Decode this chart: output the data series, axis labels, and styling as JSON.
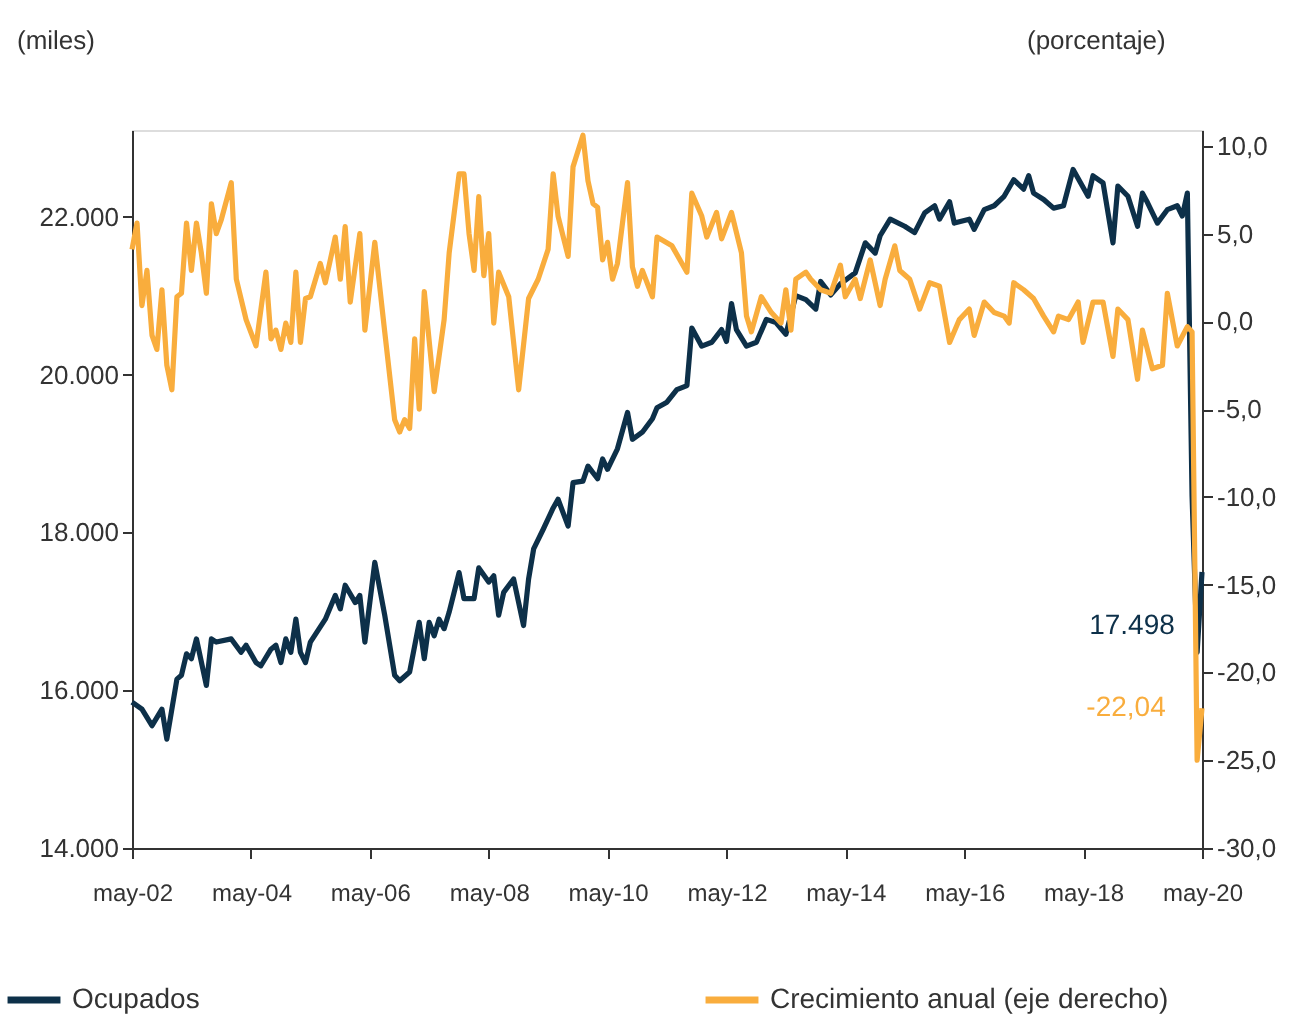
{
  "chart_data": {
    "type": "line",
    "ylabel": "(miles)",
    "y2label": "(porcentaje)",
    "legend": "bottom",
    "xlim": [
      "2002-05",
      "2020-05"
    ],
    "xticks": [
      {
        "value": "2002-05",
        "label": "may-02"
      },
      {
        "value": "2004-05",
        "label": "may-04"
      },
      {
        "value": "2006-05",
        "label": "may-06"
      },
      {
        "value": "2008-05",
        "label": "may-08"
      },
      {
        "value": "2010-05",
        "label": "may-10"
      },
      {
        "value": "2012-05",
        "label": "may-12"
      },
      {
        "value": "2014-05",
        "label": "may-14"
      },
      {
        "value": "2016-05",
        "label": "may-16"
      },
      {
        "value": "2018-05",
        "label": "may-18"
      },
      {
        "value": "2020-05",
        "label": "may-20"
      }
    ],
    "ylim": [
      14000,
      23100
    ],
    "yticks": [
      {
        "value": 14000,
        "label": "14.000"
      },
      {
        "value": 16000,
        "label": "16.000"
      },
      {
        "value": 18000,
        "label": "18.000"
      },
      {
        "value": 20000,
        "label": "20.000"
      },
      {
        "value": 22000,
        "label": "22.000"
      }
    ],
    "y2lim": [
      -30,
      10.9
    ],
    "y2ticks": [
      {
        "value": -30,
        "label": "-30,0"
      },
      {
        "value": -25,
        "label": "-25,0"
      },
      {
        "value": -20,
        "label": "-20,0"
      },
      {
        "value": -15,
        "label": "-15,0"
      },
      {
        "value": -10,
        "label": "-10,0"
      },
      {
        "value": -5,
        "label": "-5,0"
      },
      {
        "value": 0,
        "label": "0,0"
      },
      {
        "value": 5,
        "label": "5,0"
      },
      {
        "value": 10,
        "label": "10,0"
      }
    ],
    "annotations": [
      "17.498",
      "-22,04"
    ],
    "series": [
      {
        "name": "Ocupados",
        "color": "#0d3049",
        "x": [
          "2002-05",
          "2002-07",
          "2002-09",
          "2002-11",
          "2002-12",
          "2003-02",
          "2003-03",
          "2003-04",
          "2003-05",
          "2003-06",
          "2003-08",
          "2003-09",
          "2003-10",
          "2004-01",
          "2004-03",
          "2004-04",
          "2004-06",
          "2004-07",
          "2004-09",
          "2004-10",
          "2004-11",
          "2004-12",
          "2005-01",
          "2005-02",
          "2005-03",
          "2005-04",
          "2005-05",
          "2005-08",
          "2005-10",
          "2005-11",
          "2005-12",
          "2006-02",
          "2006-03",
          "2006-04",
          "2006-06",
          "2006-08",
          "2006-10",
          "2006-11",
          "2007-01",
          "2007-03",
          "2007-04",
          "2007-05",
          "2007-06",
          "2007-07",
          "2007-08",
          "2007-09",
          "2007-11",
          "2007-12",
          "2008-02",
          "2008-03",
          "2008-05",
          "2008-06",
          "2008-07",
          "2008-08",
          "2008-10",
          "2008-12",
          "2009-01",
          "2009-02",
          "2009-04",
          "2009-06",
          "2009-07",
          "2009-09",
          "2009-10",
          "2009-12",
          "2010-01",
          "2010-03",
          "2010-04",
          "2010-05",
          "2010-07",
          "2010-09",
          "2010-10",
          "2010-12",
          "2011-02",
          "2011-03",
          "2011-05",
          "2011-07",
          "2011-09",
          "2011-10",
          "2011-12",
          "2012-02",
          "2012-04",
          "2012-05",
          "2012-06",
          "2012-07",
          "2012-09",
          "2012-11",
          "2013-01",
          "2013-03",
          "2013-05",
          "2013-07",
          "2013-09",
          "2013-11",
          "2013-12",
          "2014-02",
          "2014-04",
          "2014-07",
          "2014-09",
          "2014-11",
          "2014-12",
          "2015-02",
          "2015-05",
          "2015-07",
          "2015-09",
          "2015-11",
          "2015-12",
          "2016-02",
          "2016-03",
          "2016-06",
          "2016-07",
          "2016-09",
          "2016-11",
          "2017-01",
          "2017-03",
          "2017-05",
          "2017-06",
          "2017-07",
          "2017-09",
          "2017-11",
          "2018-01",
          "2018-03",
          "2018-06",
          "2018-07",
          "2018-09",
          "2018-11",
          "2018-12",
          "2019-02",
          "2019-04",
          "2019-05",
          "2019-06",
          "2019-08",
          "2019-10",
          "2019-12",
          "2020-01",
          "2020-02",
          "2020-03",
          "2020-04",
          "2020-05"
        ],
        "values": [
          15850,
          15760,
          15550,
          15760,
          15380,
          16140,
          16190,
          16460,
          16400,
          16650,
          16060,
          16650,
          16610,
          16650,
          16480,
          16570,
          16350,
          16310,
          16520,
          16570,
          16350,
          16650,
          16480,
          16900,
          16480,
          16350,
          16610,
          16900,
          17200,
          17030,
          17330,
          17110,
          17200,
          16610,
          17620,
          16950,
          16190,
          16120,
          16230,
          16860,
          16400,
          16860,
          16690,
          16900,
          16780,
          16990,
          17490,
          17160,
          17160,
          17550,
          17370,
          17450,
          16950,
          17240,
          17410,
          16820,
          17410,
          17790,
          18040,
          18310,
          18420,
          18080,
          18630,
          18650,
          18840,
          18680,
          18930,
          18800,
          19060,
          19520,
          19180,
          19270,
          19440,
          19580,
          19650,
          19810,
          19860,
          20590,
          20360,
          20410,
          20570,
          20420,
          20900,
          20570,
          20360,
          20410,
          20700,
          20660,
          20510,
          21000,
          20950,
          20830,
          21180,
          21010,
          21150,
          21290,
          21670,
          21540,
          21760,
          21970,
          21880,
          21800,
          22050,
          22140,
          21970,
          22190,
          21920,
          21970,
          21840,
          22090,
          22140,
          22260,
          22470,
          22350,
          22520,
          22300,
          22220,
          22110,
          22140,
          22600,
          22260,
          22520,
          22430,
          21670,
          22390,
          22260,
          21880,
          22300,
          22180,
          21920,
          22090,
          22140,
          22010,
          22300,
          18460,
          16480,
          17498
        ]
      },
      {
        "name": "Crecimiento anual (eje derecho)",
        "color": "#f9ad3d",
        "axis": "y2",
        "x": [
          "2002-05",
          "2002-06",
          "2002-07",
          "2002-08",
          "2002-09",
          "2002-10",
          "2002-11",
          "2002-12",
          "2003-01",
          "2003-02",
          "2003-03",
          "2003-04",
          "2003-05",
          "2003-06",
          "2003-07",
          "2003-08",
          "2003-09",
          "2003-10",
          "2003-11",
          "2004-01",
          "2004-02",
          "2004-04",
          "2004-06",
          "2004-08",
          "2004-09",
          "2004-10",
          "2004-11",
          "2004-12",
          "2005-01",
          "2005-02",
          "2005-03",
          "2005-04",
          "2005-05",
          "2005-07",
          "2005-08",
          "2005-10",
          "2005-11",
          "2005-12",
          "2006-01",
          "2006-03",
          "2006-04",
          "2006-06",
          "2006-08",
          "2006-10",
          "2006-11",
          "2006-12",
          "2007-01",
          "2007-02",
          "2007-03",
          "2007-04",
          "2007-06",
          "2007-08",
          "2007-09",
          "2007-11",
          "2007-12",
          "2008-01",
          "2008-02",
          "2008-03",
          "2008-04",
          "2008-05",
          "2008-06",
          "2008-07",
          "2008-09",
          "2008-11",
          "2009-01",
          "2009-03",
          "2009-05",
          "2009-06",
          "2009-07",
          "2009-09",
          "2009-10",
          "2009-12",
          "2010-01",
          "2010-02",
          "2010-03",
          "2010-04",
          "2010-05",
          "2010-06",
          "2010-07",
          "2010-09",
          "2010-10",
          "2010-11",
          "2010-12",
          "2011-02",
          "2011-03",
          "2011-06",
          "2011-09",
          "2011-10",
          "2011-12",
          "2012-01",
          "2012-03",
          "2012-04",
          "2012-06",
          "2012-08",
          "2012-09",
          "2012-10",
          "2012-12",
          "2013-02",
          "2013-04",
          "2013-05",
          "2013-06",
          "2013-07",
          "2013-09",
          "2013-10",
          "2013-12",
          "2014-02",
          "2014-04",
          "2014-05",
          "2014-07",
          "2014-08",
          "2014-10",
          "2014-12",
          "2015-01",
          "2015-03",
          "2015-04",
          "2015-06",
          "2015-08",
          "2015-10",
          "2015-12",
          "2016-02",
          "2016-04",
          "2016-06",
          "2016-07",
          "2016-09",
          "2016-11",
          "2017-01",
          "2017-02",
          "2017-03",
          "2017-05",
          "2017-07",
          "2017-09",
          "2017-11",
          "2017-12",
          "2018-02",
          "2018-04",
          "2018-05",
          "2018-07",
          "2018-09",
          "2018-11",
          "2018-12",
          "2019-02",
          "2019-04",
          "2019-05",
          "2019-07",
          "2019-09",
          "2019-10",
          "2019-12",
          "2020-02",
          "2020-03",
          "2020-04",
          "2020-05"
        ],
        "values": [
          4.1,
          5.6,
          0.9,
          2.9,
          -0.8,
          -1.6,
          1.8,
          -2.5,
          -3.9,
          1.4,
          1.6,
          5.6,
          2.9,
          5.6,
          3.9,
          1.6,
          6.7,
          5.0,
          5.8,
          7.9,
          2.4,
          0.1,
          -1.4,
          2.8,
          -1.0,
          -0.5,
          -1.6,
          -0.1,
          -1.2,
          2.8,
          -1.2,
          1.3,
          1.4,
          3.3,
          2.2,
          4.8,
          2.4,
          5.4,
          1.1,
          5.0,
          -0.5,
          4.5,
          -0.6,
          -5.6,
          -6.3,
          -5.6,
          -6.1,
          -1.0,
          -5.0,
          1.7,
          -4.0,
          0.1,
          3.9,
          8.4,
          8.4,
          5.0,
          2.9,
          7.1,
          2.6,
          5.0,
          -0.1,
          2.8,
          1.4,
          -3.9,
          1.3,
          2.4,
          4.1,
          8.4,
          6.0,
          3.7,
          8.8,
          10.6,
          8.0,
          6.7,
          6.5,
          3.5,
          4.5,
          2.4,
          3.3,
          7.9,
          3.1,
          2.0,
          2.9,
          1.4,
          4.8,
          4.3,
          2.8,
          7.3,
          6.0,
          4.8,
          6.2,
          4.7,
          6.2,
          3.9,
          0.3,
          -0.6,
          1.4,
          0.5,
          -0.1,
          1.8,
          -0.5,
          2.4,
          2.8,
          2.4,
          1.8,
          1.6,
          3.2,
          1.4,
          2.4,
          1.3,
          3.5,
          0.9,
          2.4,
          4.3,
          2.9,
          2.4,
          0.7,
          2.2,
          2.0,
          -1.2,
          0.1,
          0.7,
          -0.8,
          1.1,
          0.5,
          0.3,
          -0.1,
          2.2,
          1.8,
          1.3,
          0.3,
          -0.6,
          0.3,
          0.1,
          1.1,
          -1.2,
          1.1,
          1.1,
          -2.0,
          0.7,
          0.1,
          -3.3,
          -0.5,
          -2.7,
          -2.5,
          1.6,
          -1.4,
          -0.3,
          -0.6,
          -25.0,
          -22.04
        ]
      }
    ]
  }
}
